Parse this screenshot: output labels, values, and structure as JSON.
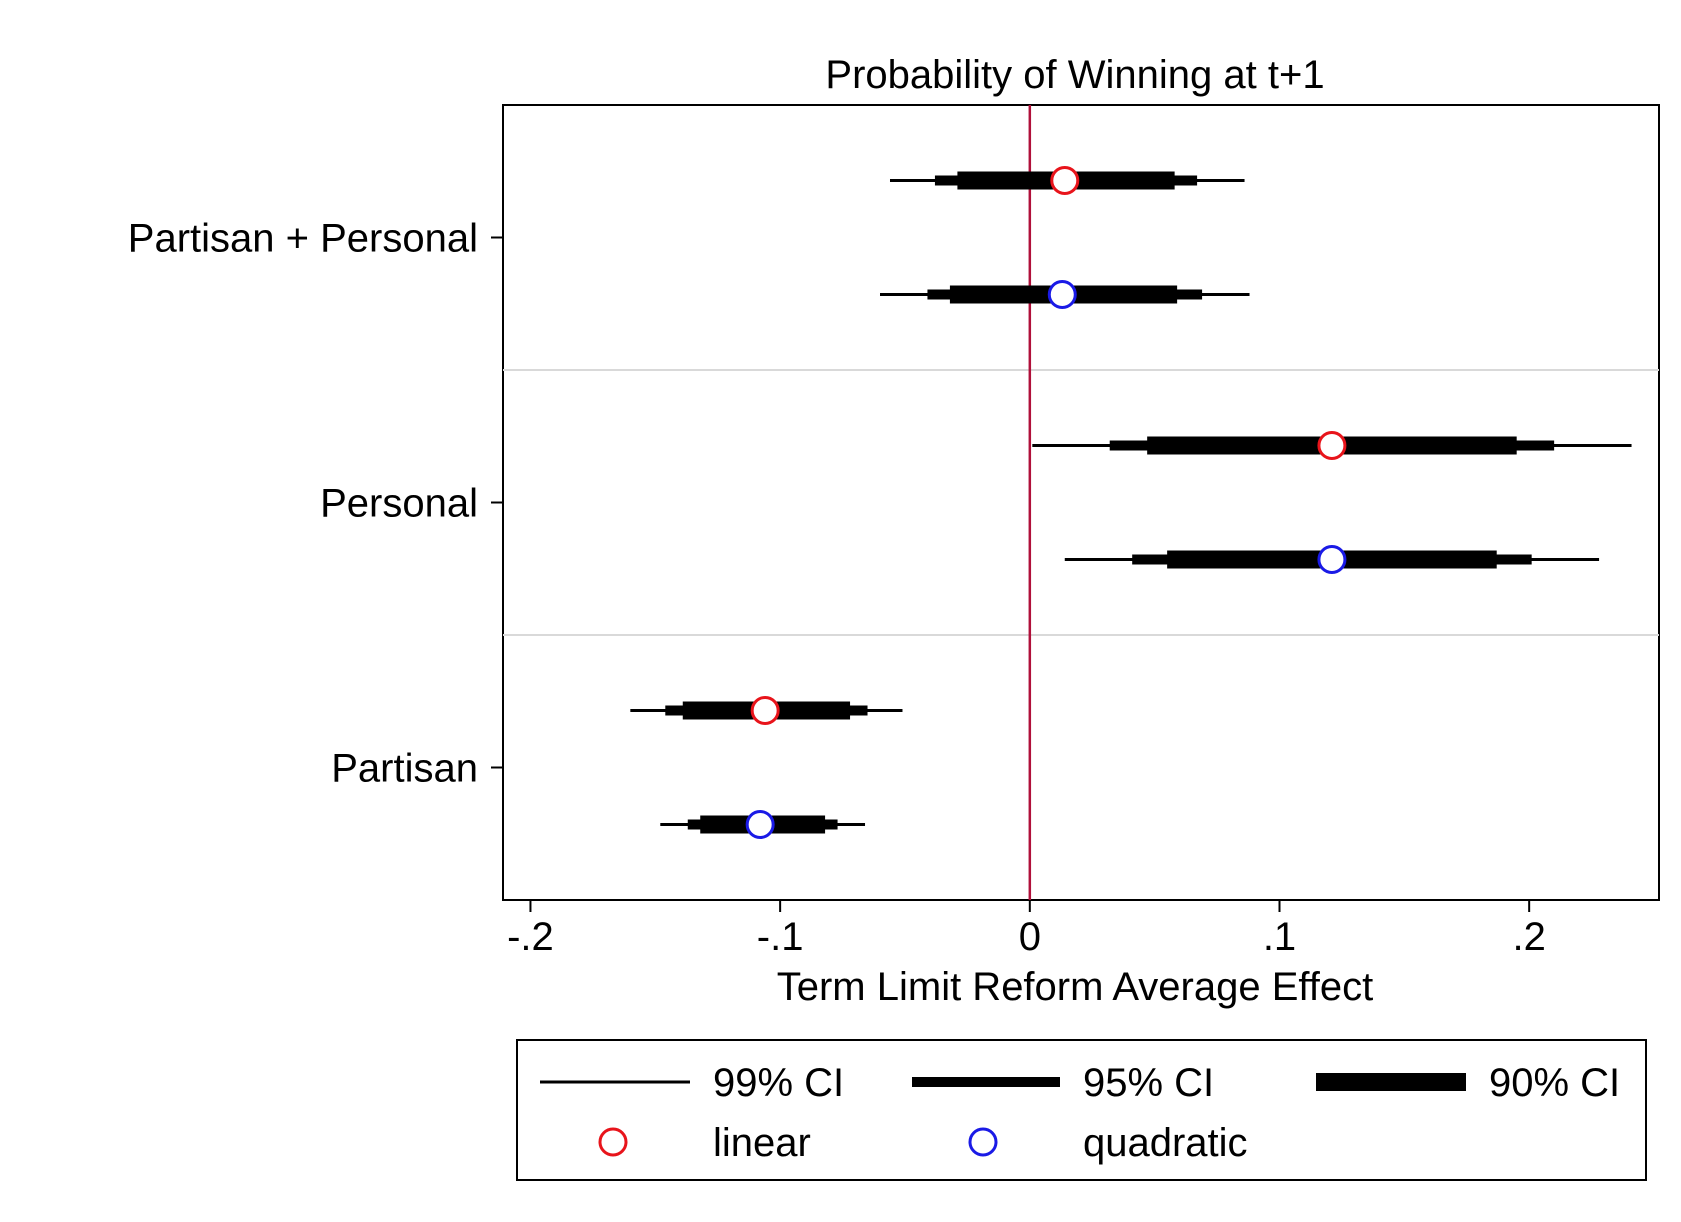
{
  "chart_data": {
    "type": "coefficient-plot",
    "title": "Probability of Winning at t+1",
    "xlabel": "Term Limit Reform Average Effect",
    "ylabel": "",
    "xlim": [
      -0.211,
      0.252
    ],
    "x_ticks": [
      {
        "value": -0.2,
        "label": "-.2"
      },
      {
        "value": -0.1,
        "label": "-.1"
      },
      {
        "value": 0,
        "label": "0"
      },
      {
        "value": 0.1,
        "label": ".1"
      },
      {
        "value": 0.2,
        "label": ".2"
      }
    ],
    "reference_line": {
      "x": 0,
      "color": "#b0103a"
    },
    "grid": false,
    "categories": [
      "Partisan + Personal",
      "Personal",
      "Partisan"
    ],
    "series": [
      {
        "name": "linear",
        "marker_color": "#e8141b",
        "points": [
          {
            "category": "Partisan + Personal",
            "estimate": 0.014,
            "ci90": [
              -0.029,
              0.058
            ],
            "ci95": [
              -0.038,
              0.067
            ],
            "ci99": [
              -0.056,
              0.086
            ]
          },
          {
            "category": "Personal",
            "estimate": 0.121,
            "ci90": [
              0.047,
              0.195
            ],
            "ci95": [
              0.032,
              0.21
            ],
            "ci99": [
              0.001,
              0.241
            ]
          },
          {
            "category": "Partisan",
            "estimate": -0.106,
            "ci90": [
              -0.139,
              -0.072
            ],
            "ci95": [
              -0.146,
              -0.065
            ],
            "ci99": [
              -0.16,
              -0.051
            ]
          }
        ]
      },
      {
        "name": "quadratic",
        "marker_color": "#1a1ae6",
        "points": [
          {
            "category": "Partisan + Personal",
            "estimate": 0.013,
            "ci90": [
              -0.032,
              0.059
            ],
            "ci95": [
              -0.041,
              0.069
            ],
            "ci99": [
              -0.06,
              0.088
            ]
          },
          {
            "category": "Personal",
            "estimate": 0.121,
            "ci90": [
              0.055,
              0.187
            ],
            "ci95": [
              0.041,
              0.201
            ],
            "ci99": [
              0.014,
              0.228
            ]
          },
          {
            "category": "Partisan",
            "estimate": -0.108,
            "ci90": [
              -0.132,
              -0.082
            ],
            "ci95": [
              -0.137,
              -0.077
            ],
            "ci99": [
              -0.148,
              -0.066
            ]
          }
        ]
      }
    ],
    "legend": {
      "position": "bottom",
      "line_entries": [
        {
          "label": "99% CI",
          "kind": "ci99"
        },
        {
          "label": "95% CI",
          "kind": "ci95"
        },
        {
          "label": "90% CI",
          "kind": "ci90"
        }
      ],
      "marker_entries": [
        {
          "label": "linear",
          "color": "#e8141b"
        },
        {
          "label": "quadratic",
          "color": "#1a1ae6"
        }
      ]
    }
  }
}
